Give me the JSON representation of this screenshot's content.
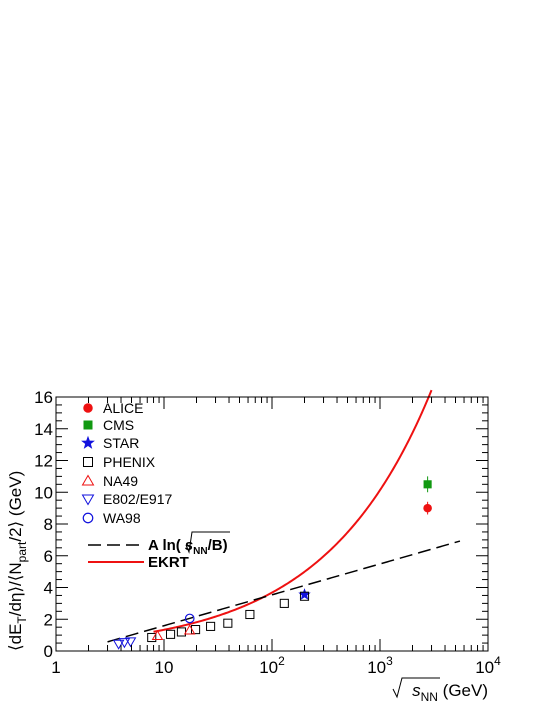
{
  "chart_data": {
    "type": "scatter",
    "title": "",
    "xlabel": {
      "main": "s",
      "sub": "NN",
      "unit": "(GeV)"
    },
    "ylabel": {
      "p1": "⟨dE",
      "p1_sub": "T",
      "p2": "/dη⟩/⟨N",
      "p2_sub": "part",
      "p3": "/2⟩ (GeV)"
    },
    "xscale": "log",
    "xlim": [
      1,
      10000
    ],
    "ylim": [
      0,
      16
    ],
    "x_ticks": [
      {
        "value": 1,
        "label": "1"
      },
      {
        "value": 10,
        "label": "10"
      },
      {
        "value": 100,
        "base": "10",
        "exp": "2"
      },
      {
        "value": 1000,
        "base": "10",
        "exp": "3"
      },
      {
        "value": 10000,
        "base": "10",
        "exp": "4"
      }
    ],
    "y_ticks": [
      0,
      2,
      4,
      6,
      8,
      10,
      12,
      14,
      16
    ],
    "grid": false,
    "legend_position": "top-left",
    "series": [
      {
        "name": "ALICE",
        "marker": "circle-filled",
        "color": "#ee1111",
        "points": [
          {
            "x": 2760,
            "y": 9.0,
            "err": 0.4
          }
        ]
      },
      {
        "name": "CMS",
        "marker": "square-filled",
        "color": "#119911",
        "points": [
          {
            "x": 2760,
            "y": 10.5,
            "err": 0.5
          }
        ]
      },
      {
        "name": "STAR",
        "marker": "star-filled",
        "color": "#1111dd",
        "points": [
          {
            "x": 200,
            "y": 3.55
          }
        ]
      },
      {
        "name": "PHENIX",
        "marker": "square-open",
        "color": "#000000",
        "points": [
          {
            "x": 7.7,
            "y": 0.85
          },
          {
            "x": 11.5,
            "y": 1.05
          },
          {
            "x": 14.5,
            "y": 1.2
          },
          {
            "x": 19.6,
            "y": 1.35
          },
          {
            "x": 27,
            "y": 1.55
          },
          {
            "x": 39,
            "y": 1.75
          },
          {
            "x": 62.4,
            "y": 2.3
          },
          {
            "x": 130,
            "y": 3.0
          },
          {
            "x": 200,
            "y": 3.45
          }
        ]
      },
      {
        "name": "NA49",
        "marker": "triangle-up-open",
        "color": "#ee1111",
        "points": [
          {
            "x": 8.7,
            "y": 0.95
          },
          {
            "x": 17.3,
            "y": 1.3
          }
        ]
      },
      {
        "name": "E802/E917",
        "marker": "triangle-down-open",
        "color": "#1111dd",
        "points": [
          {
            "x": 3.8,
            "y": 0.45
          },
          {
            "x": 4.3,
            "y": 0.55
          },
          {
            "x": 4.9,
            "y": 0.6
          }
        ]
      },
      {
        "name": "WA98",
        "marker": "circle-open",
        "color": "#1111dd",
        "points": [
          {
            "x": 17.3,
            "y": 2.05
          }
        ]
      }
    ],
    "curves": [
      {
        "name": "EKRT",
        "style": "solid",
        "color": "#ee1111",
        "formula": "0.485 * s^0.22",
        "x_range": [
          8,
          3000
        ]
      },
      {
        "name": "A ln(s_NN/B)",
        "style": "dashed",
        "color": "#000000",
        "formula": "0.4225 * ln(x^2 / 2.3)",
        "x_range": [
          3,
          5500
        ]
      }
    ],
    "legend": [
      {
        "label": "ALICE"
      },
      {
        "label": "CMS"
      },
      {
        "label": "STAR"
      },
      {
        "label": "PHENIX"
      },
      {
        "label": "NA49"
      },
      {
        "label": "E802/E917"
      },
      {
        "label": "WA98"
      },
      {
        "label_parts": [
          "A ln(",
          "s",
          "NN",
          "/B)"
        ]
      },
      {
        "label": "EKRT"
      }
    ]
  }
}
